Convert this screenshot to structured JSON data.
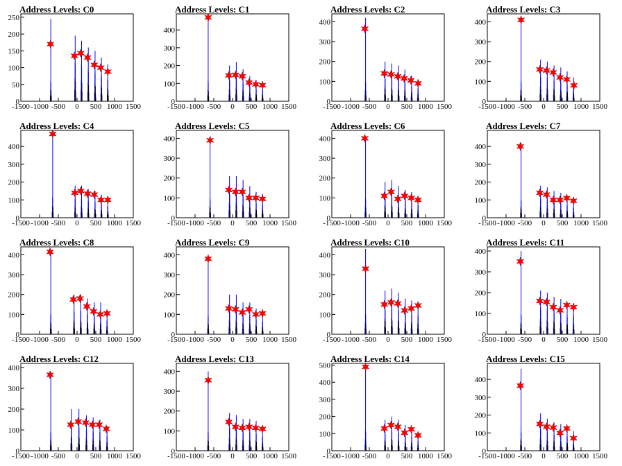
{
  "colors": {
    "histogram": "#0000ff",
    "histogram_outline": "#000000",
    "marker": "#ff0000"
  },
  "chart_data": [
    {
      "type": "bar",
      "title": "Address Levels: C0",
      "xlim": [
        -1500,
        1500
      ],
      "ylim": [
        0,
        260
      ],
      "xticks": [
        -1500,
        -1000,
        -500,
        0,
        500,
        1000,
        1500
      ],
      "yticks": [
        0,
        50,
        100,
        150,
        200,
        250
      ],
      "peaks_x": [
        -700,
        -50,
        120,
        300,
        480,
        650,
        820
      ],
      "peaks_y": [
        245,
        195,
        180,
        160,
        150,
        130,
        110
      ],
      "markers_x": [
        -710,
        -70,
        100,
        280,
        460,
        630,
        820
      ],
      "markers_y": [
        170,
        135,
        143,
        130,
        108,
        100,
        88
      ]
    },
    {
      "type": "bar",
      "title": "Address Levels: C1",
      "xlim": [
        -1500,
        1500
      ],
      "ylim": [
        0,
        490
      ],
      "xticks": [
        -1500,
        -1000,
        -500,
        0,
        500,
        1000,
        1500
      ],
      "yticks": [
        0,
        100,
        200,
        300,
        400
      ],
      "peaks_x": [
        -650,
        -80,
        100,
        280,
        460,
        630,
        800
      ],
      "peaks_y": [
        470,
        200,
        220,
        180,
        140,
        120,
        110
      ],
      "markers_x": [
        -650,
        -100,
        80,
        260,
        440,
        620,
        800
      ],
      "markers_y": [
        470,
        145,
        148,
        140,
        105,
        95,
        90
      ]
    },
    {
      "type": "bar",
      "title": "Address Levels: C2",
      "xlim": [
        -1500,
        1500
      ],
      "ylim": [
        0,
        440
      ],
      "xticks": [
        -1500,
        -1000,
        -500,
        0,
        500,
        1000,
        1500
      ],
      "yticks": [
        0,
        100,
        200,
        300,
        400
      ],
      "peaks_x": [
        -600,
        -80,
        100,
        280,
        450,
        630,
        800
      ],
      "peaks_y": [
        420,
        200,
        190,
        180,
        160,
        130,
        110
      ],
      "markers_x": [
        -620,
        -100,
        80,
        260,
        430,
        610,
        800
      ],
      "markers_y": [
        365,
        140,
        135,
        125,
        115,
        105,
        90
      ]
    },
    {
      "type": "bar",
      "title": "Address Levels: C3",
      "xlim": [
        -1500,
        1500
      ],
      "ylim": [
        0,
        440
      ],
      "xticks": [
        -1500,
        -1000,
        -500,
        0,
        500,
        1000,
        1500
      ],
      "yticks": [
        0,
        100,
        200,
        300,
        400
      ],
      "peaks_x": [
        -600,
        -80,
        100,
        280,
        460,
        630,
        800
      ],
      "peaks_y": [
        420,
        210,
        200,
        180,
        170,
        150,
        120
      ],
      "markers_x": [
        -600,
        -100,
        80,
        260,
        440,
        620,
        810
      ],
      "markers_y": [
        410,
        160,
        155,
        145,
        120,
        110,
        80
      ]
    },
    {
      "type": "bar",
      "title": "Address Levels: C4",
      "xlim": [
        -1500,
        1500
      ],
      "ylim": [
        0,
        490
      ],
      "xticks": [
        -1500,
        -1000,
        -500,
        0,
        500,
        1000,
        1500
      ],
      "yticks": [
        0,
        100,
        200,
        300,
        400
      ],
      "peaks_x": [
        -650,
        -50,
        120,
        300,
        480,
        650,
        820
      ],
      "peaks_y": [
        480,
        180,
        180,
        160,
        150,
        130,
        110
      ],
      "markers_x": [
        -650,
        -60,
        100,
        280,
        460,
        640,
        820
      ],
      "markers_y": [
        470,
        140,
        150,
        135,
        130,
        100,
        100
      ]
    },
    {
      "type": "bar",
      "title": "Address Levels: C5",
      "xlim": [
        -1500,
        1500
      ],
      "ylim": [
        0,
        440
      ],
      "xticks": [
        -1500,
        -1000,
        -500,
        0,
        500,
        1000,
        1500
      ],
      "yticks": [
        0,
        100,
        200,
        300,
        400
      ],
      "peaks_x": [
        -600,
        -80,
        100,
        280,
        460,
        630,
        800
      ],
      "peaks_y": [
        410,
        210,
        210,
        190,
        160,
        130,
        120
      ],
      "markers_x": [
        -600,
        -100,
        80,
        260,
        440,
        620,
        800
      ],
      "markers_y": [
        390,
        140,
        130,
        130,
        100,
        100,
        95
      ]
    },
    {
      "type": "bar",
      "title": "Address Levels: C6",
      "xlim": [
        -1500,
        1500
      ],
      "ylim": [
        0,
        440
      ],
      "xticks": [
        -1500,
        -1000,
        -500,
        0,
        500,
        1000,
        1500
      ],
      "yticks": [
        0,
        100,
        200,
        300,
        400
      ],
      "peaks_x": [
        -600,
        -80,
        100,
        280,
        460,
        630,
        800
      ],
      "peaks_y": [
        410,
        180,
        190,
        160,
        140,
        130,
        110
      ],
      "markers_x": [
        -620,
        -100,
        80,
        260,
        440,
        620,
        800
      ],
      "markers_y": [
        400,
        110,
        130,
        95,
        110,
        100,
        90
      ]
    },
    {
      "type": "bar",
      "title": "Address Levels: C7",
      "xlim": [
        -1500,
        1500
      ],
      "ylim": [
        0,
        490
      ],
      "xticks": [
        -1500,
        -1000,
        -500,
        0,
        500,
        1000,
        1500
      ],
      "yticks": [
        0,
        100,
        200,
        300,
        400
      ],
      "peaks_x": [
        -600,
        -80,
        100,
        280,
        460,
        630,
        800
      ],
      "peaks_y": [
        420,
        180,
        170,
        150,
        140,
        120,
        100
      ],
      "markers_x": [
        -620,
        -100,
        80,
        260,
        440,
        620,
        800
      ],
      "markers_y": [
        400,
        140,
        130,
        100,
        100,
        110,
        95
      ]
    },
    {
      "type": "bar",
      "title": "Address Levels: C8",
      "xlim": [
        -1500,
        1500
      ],
      "ylim": [
        0,
        440
      ],
      "xticks": [
        -1500,
        -1000,
        -500,
        0,
        500,
        1000,
        1500
      ],
      "yticks": [
        0,
        100,
        200,
        300,
        400
      ],
      "peaks_x": [
        -700,
        -80,
        100,
        280,
        460,
        630,
        800
      ],
      "peaks_y": [
        420,
        200,
        200,
        180,
        160,
        160,
        120
      ],
      "markers_x": [
        -720,
        -100,
        80,
        260,
        440,
        620,
        800
      ],
      "markers_y": [
        415,
        175,
        180,
        140,
        115,
        100,
        105
      ]
    },
    {
      "type": "bar",
      "title": "Address Levels: C9",
      "xlim": [
        -1500,
        1500
      ],
      "ylim": [
        0,
        440
      ],
      "xticks": [
        -1500,
        -1000,
        -500,
        0,
        500,
        1000,
        1500
      ],
      "yticks": [
        0,
        100,
        200,
        300,
        400
      ],
      "peaks_x": [
        -650,
        -80,
        100,
        280,
        460,
        630,
        800
      ],
      "peaks_y": [
        400,
        200,
        200,
        160,
        160,
        130,
        110
      ],
      "markers_x": [
        -650,
        -100,
        80,
        260,
        440,
        620,
        800
      ],
      "markers_y": [
        380,
        130,
        125,
        110,
        125,
        100,
        105
      ]
    },
    {
      "type": "bar",
      "title": "Address Levels: C10",
      "xlim": [
        -1500,
        1500
      ],
      "ylim": [
        0,
        440
      ],
      "xticks": [
        -1500,
        -1000,
        -500,
        0,
        500,
        1000,
        1500
      ],
      "yticks": [
        0,
        100,
        200,
        300,
        400
      ],
      "peaks_x": [
        -600,
        -80,
        100,
        280,
        460,
        630,
        800
      ],
      "peaks_y": [
        430,
        220,
        230,
        210,
        180,
        170,
        160
      ],
      "markers_x": [
        -600,
        -100,
        80,
        260,
        440,
        620,
        800
      ],
      "markers_y": [
        330,
        150,
        160,
        155,
        120,
        130,
        145
      ]
    },
    {
      "type": "bar",
      "title": "Address Levels: C11",
      "xlim": [
        -1500,
        1500
      ],
      "ylim": [
        0,
        420
      ],
      "xticks": [
        -1500,
        -1000,
        -500,
        0,
        500,
        1000,
        1500
      ],
      "yticks": [
        0,
        100,
        200,
        300,
        400
      ],
      "peaks_x": [
        -600,
        -80,
        100,
        280,
        460,
        630,
        800
      ],
      "peaks_y": [
        400,
        210,
        200,
        180,
        170,
        150,
        150
      ],
      "markers_x": [
        -620,
        -100,
        80,
        260,
        440,
        620,
        800
      ],
      "markers_y": [
        350,
        160,
        155,
        130,
        115,
        140,
        130
      ]
    },
    {
      "type": "bar",
      "title": "Address Levels: C12",
      "xlim": [
        -1500,
        1500
      ],
      "ylim": [
        0,
        420
      ],
      "xticks": [
        -1500,
        -1000,
        -500,
        0,
        500,
        1000,
        1500
      ],
      "yticks": [
        0,
        100,
        200,
        300,
        400
      ],
      "peaks_x": [
        -700,
        -150,
        50,
        250,
        430,
        610,
        800
      ],
      "peaks_y": [
        380,
        200,
        200,
        170,
        160,
        150,
        120
      ],
      "markers_x": [
        -720,
        -170,
        30,
        230,
        410,
        590,
        780
      ],
      "markers_y": [
        365,
        125,
        140,
        135,
        125,
        125,
        105
      ]
    },
    {
      "type": "bar",
      "title": "Address Levels: C13",
      "xlim": [
        -1500,
        1500
      ],
      "ylim": [
        0,
        440
      ],
      "xticks": [
        -1500,
        -1000,
        -500,
        0,
        500,
        1000,
        1500
      ],
      "yticks": [
        0,
        100,
        200,
        300,
        400
      ],
      "peaks_x": [
        -650,
        -80,
        100,
        280,
        460,
        630,
        800
      ],
      "peaks_y": [
        400,
        190,
        180,
        160,
        160,
        150,
        120
      ],
      "markers_x": [
        -650,
        -100,
        80,
        260,
        440,
        620,
        800
      ],
      "markers_y": [
        355,
        145,
        120,
        115,
        120,
        115,
        110
      ]
    },
    {
      "type": "bar",
      "title": "Address Levels: C14",
      "xlim": [
        -1500,
        1500
      ],
      "ylim": [
        0,
        510
      ],
      "xticks": [
        -1500,
        -1000,
        -500,
        0,
        500,
        1000,
        1500
      ],
      "yticks": [
        0,
        100,
        200,
        300,
        400,
        500
      ],
      "peaks_x": [
        -600,
        -80,
        100,
        280,
        460,
        630,
        800
      ],
      "peaks_y": [
        490,
        180,
        200,
        180,
        150,
        140,
        100
      ],
      "markers_x": [
        -600,
        -100,
        80,
        260,
        440,
        620,
        800
      ],
      "markers_y": [
        490,
        130,
        150,
        140,
        105,
        125,
        90
      ]
    },
    {
      "type": "bar",
      "title": "Address Levels: C15",
      "xlim": [
        -1500,
        1500
      ],
      "ylim": [
        0,
        490
      ],
      "xticks": [
        -1500,
        -1000,
        -500,
        0,
        500,
        1000,
        1500
      ],
      "yticks": [
        0,
        100,
        200,
        300,
        400
      ],
      "peaks_x": [
        -600,
        -80,
        100,
        280,
        460,
        630,
        800
      ],
      "peaks_y": [
        460,
        210,
        180,
        160,
        150,
        140,
        110
      ],
      "markers_x": [
        -620,
        -100,
        80,
        260,
        440,
        620,
        800
      ],
      "markers_y": [
        365,
        150,
        135,
        130,
        100,
        125,
        70
      ]
    }
  ]
}
